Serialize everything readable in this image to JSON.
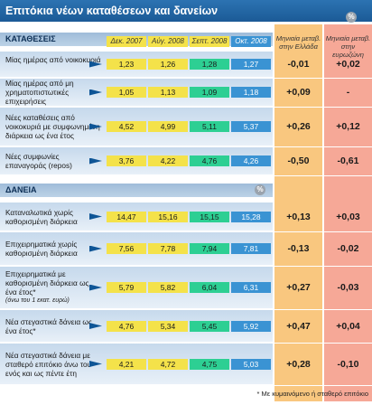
{
  "chart_data": {
    "type": "table",
    "title": "Επιτόκια νέων καταθέσεων και δανείων",
    "periods": [
      "Δεκ. 2007",
      "Αύγ. 2008",
      "Σεπτ. 2008",
      "Οκτ. 2008"
    ],
    "change_headers": [
      "Μηνιαία μεταβ. στην Ελλάδα",
      "Μηνιαία μεταβ. στην ευρωζώνη"
    ],
    "percent_badge": "%",
    "sections": [
      {
        "label": "ΚΑΤΑΘΕΣΕΙΣ",
        "rows": [
          {
            "label": "Μίας ημέρας από νοικοκυριά",
            "note": "",
            "values": [
              "1,23",
              "1,26",
              "1,28",
              "1,27"
            ],
            "change_greece": "-0,01",
            "change_eurozone": "+0,02"
          },
          {
            "label": "Μίας ημέρας από μη χρηματοπιστωτικές επιχειρήσεις",
            "note": "",
            "values": [
              "1,05",
              "1,13",
              "1,09",
              "1,18"
            ],
            "change_greece": "+0,09",
            "change_eurozone": "-"
          },
          {
            "label": "Νέες καταθέσεις από νοικοκυριά με συμφωνημένη διάρκεια ως ένα έτος",
            "note": "",
            "values": [
              "4,52",
              "4,99",
              "5,11",
              "5,37"
            ],
            "change_greece": "+0,26",
            "change_eurozone": "+0,12"
          },
          {
            "label": "Νέες συμφωνίες επαναγοράς (repos)",
            "note": "",
            "values": [
              "3,76",
              "4,22",
              "4,76",
              "4,26"
            ],
            "change_greece": "-0,50",
            "change_eurozone": "-0,61"
          }
        ]
      },
      {
        "label": "ΔΑΝΕΙΑ",
        "rows": [
          {
            "label": "Καταναλωτικά χωρίς καθορισμένη διάρκεια",
            "note": "",
            "values": [
              "14,47",
              "15,16",
              "15,15",
              "15,28"
            ],
            "change_greece": "+0,13",
            "change_eurozone": "+0,03"
          },
          {
            "label": "Επιχειρηματικά χωρίς καθορισμένη διάρκεια",
            "note": "",
            "values": [
              "7,56",
              "7,78",
              "7,94",
              "7,81"
            ],
            "change_greece": "-0,13",
            "change_eurozone": "-0,02"
          },
          {
            "label": "Επιχειρηματικά με καθορισμένη διάρκεια ως ένα έτος*",
            "note": "(όνω του 1 εκατ. ευρώ)",
            "values": [
              "5,79",
              "5,82",
              "6,04",
              "6,31"
            ],
            "change_greece": "+0,27",
            "change_eurozone": "-0,03"
          },
          {
            "label": "Νέα στεγαστικά δάνεια ως ένα έτος*",
            "note": "",
            "values": [
              "4,76",
              "5,34",
              "5,45",
              "5,92"
            ],
            "change_greece": "+0,47",
            "change_eurozone": "+0,04"
          },
          {
            "label": "Νέα στεγαστικά δάνεια με σταθερό επιτόκιο άνω του ενός και ως πέντε έτη",
            "note": "",
            "values": [
              "4,21",
              "4,72",
              "4,75",
              "5,03"
            ],
            "change_greece": "+0,28",
            "change_eurozone": "-0,10"
          }
        ]
      }
    ],
    "footnote": "* Με κυμαινόμενο ή σταθερό επιτόκιο"
  }
}
